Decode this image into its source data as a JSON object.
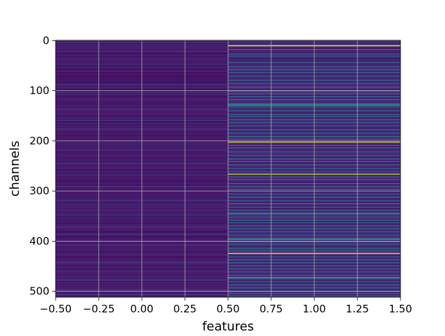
{
  "chart_data": {
    "type": "heatmap",
    "title": "",
    "xlabel": "features",
    "ylabel": "channels",
    "xlim": [
      -0.5,
      1.5
    ],
    "ylim": [
      511.5,
      -0.5
    ],
    "x_ticks": [
      -0.5,
      -0.25,
      0.0,
      0.25,
      0.5,
      0.75,
      1.0,
      1.25,
      1.5
    ],
    "x_tick_labels": [
      "−0.50",
      "−0.25",
      "0.00",
      "0.25",
      "0.50",
      "0.75",
      "1.00",
      "1.25",
      "1.50"
    ],
    "y_ticks": [
      0,
      100,
      200,
      300,
      400,
      500
    ],
    "y_tick_labels": [
      "0",
      "100",
      "200",
      "300",
      "400",
      "500"
    ],
    "grid": true,
    "grid_color": "#b0b0b0",
    "colormap": "viridis",
    "n_channels": 512,
    "columns": [
      {
        "feature": 0,
        "base_level": 0.03,
        "band_level": 0.18,
        "band_channels": [
          4,
          22,
          47,
          61,
          88,
          103,
          137,
          159,
          176,
          218,
          244,
          268,
          291,
          318,
          347,
          372,
          386,
          408,
          441,
          459,
          477,
          497,
          506
        ]
      },
      {
        "feature": 1,
        "base_level": 0.06,
        "band_level": 0.4,
        "band_channels": [
          9,
          18,
          27,
          31,
          44,
          52,
          58,
          64,
          71,
          79,
          85,
          93,
          101,
          106,
          112,
          118,
          126,
          131,
          140,
          147,
          151,
          157,
          163,
          170,
          178,
          184,
          191,
          197,
          209,
          214,
          222,
          229,
          236,
          241,
          248,
          255,
          261,
          272,
          277,
          285,
          291,
          297,
          306,
          312,
          319,
          325,
          332,
          338,
          347,
          352,
          358,
          363,
          369,
          375,
          381,
          388,
          394,
          401,
          406,
          414,
          419,
          431,
          437,
          443,
          449,
          455,
          461,
          468,
          474,
          481,
          487,
          493,
          499,
          504,
          509
        ],
        "bright_channels": [
          {
            "channel": 10,
            "level": 1.0
          },
          {
            "channel": 128,
            "level": 0.6
          },
          {
            "channel": 202,
            "level": 0.95
          },
          {
            "channel": 266,
            "level": 0.9
          },
          {
            "channel": 344,
            "level": 0.55
          },
          {
            "channel": 396,
            "level": 0.62
          },
          {
            "channel": 424,
            "level": 1.0
          },
          {
            "channel": 472,
            "level": 0.6
          }
        ]
      }
    ]
  }
}
